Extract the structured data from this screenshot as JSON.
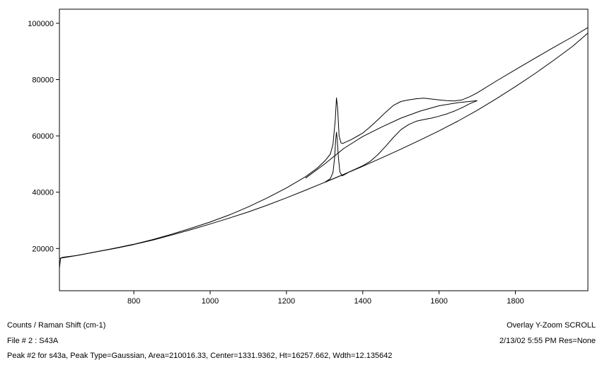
{
  "status": {
    "axis_description": "Counts / Raman Shift (cm-1)",
    "file": "File # 2 : S43A",
    "peak_info": "Peak #2 for s43a, Peak Type=Gaussian, Area=210016.33, Center=1331.9362, Ht=16257.662, Wdth=12.135642",
    "mode": "Overlay Y-Zoom SCROLL",
    "timestamp": "2/13/02  5:55 PM  Res=None"
  },
  "chart_data": {
    "type": "line",
    "title": "",
    "xlabel": "",
    "ylabel": "",
    "xlim": [
      605,
      1990
    ],
    "ylim": [
      5000,
      105000
    ],
    "x_ticks": [
      800,
      1000,
      1200,
      1400,
      1600,
      1800
    ],
    "y_ticks": [
      20000,
      40000,
      60000,
      80000,
      100000
    ],
    "grid": false,
    "line_color": "#000000",
    "series": [
      {
        "role": "measured-spectrum",
        "x": [
          605,
          608,
          612,
          620,
          650,
          700,
          750,
          800,
          850,
          900,
          950,
          1000,
          1050,
          1100,
          1150,
          1200,
          1250,
          1280,
          1300,
          1315,
          1322,
          1328,
          1331,
          1334,
          1338,
          1343,
          1348,
          1355,
          1370,
          1400,
          1420,
          1440,
          1460,
          1480,
          1500,
          1520,
          1540,
          1560,
          1580,
          1600,
          1620,
          1640,
          1660,
          1680,
          1700,
          1750,
          1800,
          1850,
          1900,
          1950,
          1990
        ],
        "y": [
          13000,
          16500,
          16800,
          17000,
          17500,
          18800,
          20100,
          21500,
          23200,
          25100,
          27200,
          29400,
          31900,
          34800,
          38000,
          41500,
          45500,
          48500,
          51000,
          53500,
          57000,
          66000,
          73500,
          70000,
          60000,
          57500,
          57300,
          57800,
          58700,
          61000,
          63300,
          65800,
          68400,
          70800,
          72200,
          72800,
          73200,
          73400,
          73100,
          72800,
          72500,
          72400,
          72800,
          73900,
          75300,
          79500,
          83500,
          87500,
          91400,
          95200,
          98500
        ]
      },
      {
        "role": "baseline",
        "x": [
          605,
          650,
          700,
          750,
          800,
          850,
          900,
          950,
          1000,
          1050,
          1100,
          1150,
          1200,
          1250,
          1300,
          1350,
          1400,
          1450,
          1500,
          1550,
          1600,
          1650,
          1700,
          1750,
          1800,
          1850,
          1900,
          1950,
          1990
        ],
        "y": [
          16500,
          17500,
          18800,
          20000,
          21400,
          23000,
          24800,
          26700,
          28700,
          30800,
          33000,
          35400,
          38000,
          40700,
          43500,
          46300,
          49200,
          52200,
          55300,
          58500,
          61800,
          65300,
          69100,
          73200,
          77500,
          82000,
          86800,
          91800,
          96500
        ]
      },
      {
        "role": "peak-1-gaussian",
        "x": [
          1300,
          1315,
          1322,
          1326,
          1329,
          1331,
          1333,
          1336,
          1340,
          1346,
          1360
        ],
        "y": [
          43500,
          44800,
          47000,
          52000,
          58500,
          61300,
          59000,
          52500,
          47200,
          45800,
          46800
        ]
      },
      {
        "role": "peak-2-broad-component",
        "x": [
          1300,
          1350,
          1400,
          1420,
          1440,
          1460,
          1480,
          1500,
          1520,
          1540,
          1560,
          1580,
          1600,
          1620,
          1640,
          1660,
          1680,
          1700
        ],
        "y": [
          43500,
          46300,
          49400,
          51000,
          53400,
          56300,
          59400,
          62200,
          64000,
          65200,
          65800,
          66300,
          67000,
          67800,
          68800,
          70000,
          71400,
          72500
        ]
      },
      {
        "role": "broad-band-component",
        "x": [
          1250,
          1300,
          1350,
          1400,
          1450,
          1500,
          1550,
          1600,
          1650,
          1700
        ],
        "y": [
          45000,
          50000,
          55500,
          59800,
          63200,
          66300,
          68800,
          70700,
          71800,
          72500
        ]
      }
    ]
  }
}
